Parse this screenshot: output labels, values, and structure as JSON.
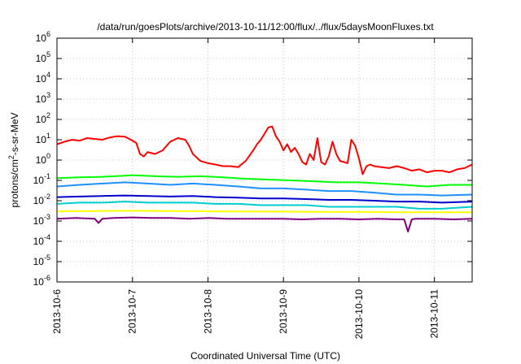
{
  "chart_data": {
    "type": "line",
    "title": "/data/run/goesPlots/archive/2013-10-11/12:00/flux/../flux/5daysMoonFluxes.txt",
    "xlabel": "Coordinated Universal Time (UTC)",
    "ylabel": {
      "base": "protons/cm",
      "sup": "2",
      "rest": "-s-sr-MeV"
    },
    "yscale": "log",
    "ylim": [
      1e-06,
      1000000.0
    ],
    "xlim": [
      0,
      5.5
    ],
    "grid": true,
    "legend": "none",
    "x_ticks": [
      {
        "x": 0,
        "label": "2013-10-6"
      },
      {
        "x": 1,
        "label": "2013-10-7"
      },
      {
        "x": 2,
        "label": "2013-10-8"
      },
      {
        "x": 3,
        "label": "2013-10-9"
      },
      {
        "x": 4,
        "label": "2013-10-10"
      },
      {
        "x": 5,
        "label": "2013-10-11"
      }
    ],
    "y_ticks": [
      {
        "exp": 6,
        "base": "10",
        "sup": "6"
      },
      {
        "exp": 5,
        "base": "10",
        "sup": "5"
      },
      {
        "exp": 4,
        "base": "10",
        "sup": "4"
      },
      {
        "exp": 3,
        "base": "10",
        "sup": "3"
      },
      {
        "exp": 2,
        "base": "10",
        "sup": "2"
      },
      {
        "exp": 1,
        "base": "10",
        "sup": "1"
      },
      {
        "exp": 0,
        "base": "10",
        "sup": "0"
      },
      {
        "exp": -1,
        "base": "10",
        "sup": "-1"
      },
      {
        "exp": -2,
        "base": "10",
        "sup": "-2"
      },
      {
        "exp": -3,
        "base": "10",
        "sup": "-3"
      },
      {
        "exp": -4,
        "base": "10",
        "sup": "-4"
      },
      {
        "exp": -5,
        "base": "10",
        "sup": "-5"
      },
      {
        "exp": -6,
        "base": "10",
        "sup": "-6"
      }
    ],
    "series": [
      {
        "color": "#ff0000",
        "x": [
          0,
          0.1,
          0.2,
          0.3,
          0.4,
          0.5,
          0.6,
          0.7,
          0.8,
          0.9,
          1.0,
          1.05,
          1.1,
          1.15,
          1.2,
          1.3,
          1.4,
          1.5,
          1.6,
          1.7,
          1.75,
          1.8,
          1.9,
          2.0,
          2.1,
          2.2,
          2.3,
          2.4,
          2.5,
          2.6,
          2.65,
          2.7,
          2.75,
          2.8,
          2.85,
          2.9,
          2.95,
          3.0,
          3.05,
          3.1,
          3.15,
          3.2,
          3.25,
          3.3,
          3.35,
          3.4,
          3.45,
          3.5,
          3.55,
          3.6,
          3.65,
          3.7,
          3.75,
          3.8,
          3.85,
          3.9,
          3.95,
          4.0,
          4.05,
          4.1,
          4.15,
          4.2,
          4.3,
          4.4,
          4.5,
          4.6,
          4.7,
          4.8,
          4.9,
          5.0,
          5.1,
          5.2,
          5.3,
          5.4,
          5.5
        ],
        "y": [
          6,
          8,
          10,
          9,
          12,
          11,
          10,
          13,
          15,
          14,
          9,
          7,
          2,
          1.5,
          2.5,
          2,
          3,
          8,
          12,
          10,
          5,
          2,
          0.9,
          0.7,
          0.6,
          0.5,
          0.5,
          0.45,
          0.9,
          3,
          6,
          10,
          20,
          40,
          45,
          15,
          8,
          3,
          6,
          2.5,
          4,
          2,
          0.8,
          0.6,
          2,
          1,
          12,
          0.8,
          0.6,
          1.5,
          8,
          2,
          0.9,
          0.8,
          0.7,
          10,
          5,
          1.2,
          0.2,
          0.5,
          0.6,
          0.5,
          0.45,
          0.4,
          0.5,
          0.4,
          0.3,
          0.35,
          0.25,
          0.3,
          0.3,
          0.25,
          0.35,
          0.4,
          0.6
        ]
      },
      {
        "color": "#00ff00",
        "x": [
          0,
          0.3,
          0.6,
          0.9,
          1.0,
          1.3,
          1.6,
          1.9,
          2.2,
          2.5,
          2.8,
          3.1,
          3.4,
          3.7,
          4.0,
          4.3,
          4.6,
          4.9,
          5.2,
          5.5
        ],
        "y": [
          0.13,
          0.14,
          0.15,
          0.17,
          0.18,
          0.16,
          0.15,
          0.16,
          0.14,
          0.12,
          0.11,
          0.1,
          0.09,
          0.08,
          0.08,
          0.07,
          0.06,
          0.05,
          0.06,
          0.06
        ]
      },
      {
        "color": "#1e90ff",
        "x": [
          0,
          0.3,
          0.6,
          0.9,
          1.2,
          1.5,
          1.8,
          2.1,
          2.4,
          2.7,
          3.0,
          3.3,
          3.6,
          3.9,
          4.2,
          4.5,
          4.8,
          5.1,
          5.5
        ],
        "y": [
          0.05,
          0.06,
          0.07,
          0.08,
          0.07,
          0.06,
          0.07,
          0.06,
          0.05,
          0.04,
          0.04,
          0.035,
          0.03,
          0.03,
          0.025,
          0.02,
          0.02,
          0.018,
          0.02
        ]
      },
      {
        "color": "#0000cc",
        "x": [
          0,
          0.3,
          0.6,
          0.9,
          1.2,
          1.5,
          1.8,
          2.1,
          2.4,
          2.7,
          3.0,
          3.3,
          3.6,
          3.9,
          4.2,
          4.5,
          4.8,
          5.1,
          5.5
        ],
        "y": [
          0.015,
          0.016,
          0.017,
          0.018,
          0.017,
          0.016,
          0.017,
          0.015,
          0.014,
          0.013,
          0.013,
          0.012,
          0.011,
          0.011,
          0.01,
          0.009,
          0.009,
          0.008,
          0.009
        ]
      },
      {
        "color": "#00cccc",
        "x": [
          0,
          0.3,
          0.6,
          0.9,
          1.2,
          1.5,
          1.8,
          2.1,
          2.4,
          2.7,
          3.0,
          3.3,
          3.6,
          3.9,
          4.2,
          4.5,
          4.8,
          5.1,
          5.5
        ],
        "y": [
          0.007,
          0.008,
          0.008,
          0.009,
          0.008,
          0.008,
          0.008,
          0.007,
          0.007,
          0.006,
          0.006,
          0.006,
          0.005,
          0.005,
          0.005,
          0.005,
          0.004,
          0.004,
          0.005
        ]
      },
      {
        "color": "#ffff00",
        "x": [
          0,
          0.5,
          1.0,
          1.5,
          2.0,
          2.5,
          3.0,
          3.5,
          4.0,
          4.5,
          5.0,
          5.5
        ],
        "y": [
          0.003,
          0.0031,
          0.0032,
          0.0031,
          0.003,
          0.0029,
          0.0029,
          0.0028,
          0.0028,
          0.0027,
          0.0027,
          0.0027
        ]
      },
      {
        "color": "#800080",
        "x": [
          0,
          0.25,
          0.5,
          0.55,
          0.6,
          0.75,
          1.0,
          1.25,
          1.5,
          1.75,
          2.0,
          2.25,
          2.5,
          2.75,
          3.0,
          3.25,
          3.5,
          3.75,
          4.0,
          4.25,
          4.5,
          4.6,
          4.65,
          4.7,
          4.75,
          5.0,
          5.25,
          5.5
        ],
        "y": [
          0.0013,
          0.0014,
          0.0013,
          0.0008,
          0.0013,
          0.0014,
          0.0015,
          0.0014,
          0.0014,
          0.0013,
          0.0014,
          0.0013,
          0.0013,
          0.0013,
          0.0013,
          0.0012,
          0.0013,
          0.0013,
          0.0012,
          0.0013,
          0.0012,
          0.0012,
          0.0003,
          0.0012,
          0.0013,
          0.0013,
          0.0012,
          0.0013
        ]
      }
    ]
  }
}
